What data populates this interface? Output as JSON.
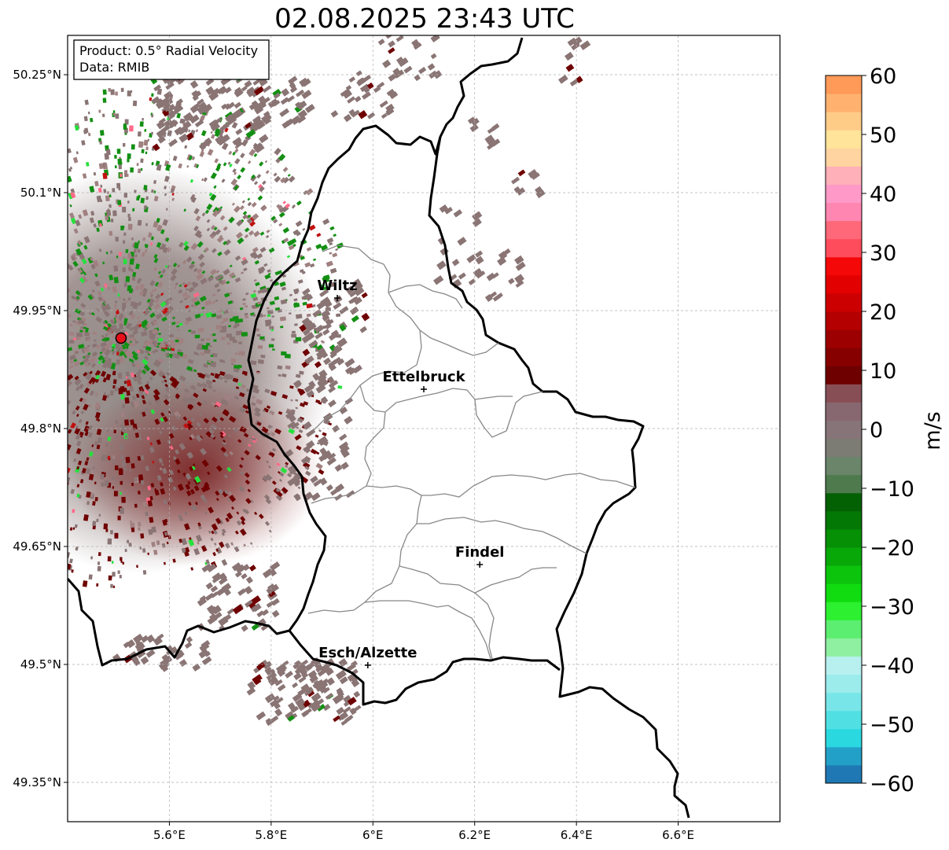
{
  "title": "02.08.2025 23:43 UTC",
  "info": {
    "product": "Product: 0.5° Radial Velocity",
    "source": "Data: RMIB"
  },
  "axes": {
    "lat_labels": [
      "50.25°N",
      "50.1°N",
      "49.95°N",
      "49.8°N",
      "49.65°N",
      "49.5°N",
      "49.35°N"
    ],
    "lat_values": [
      50.25,
      50.1,
      49.95,
      49.8,
      49.65,
      49.5,
      49.35
    ],
    "lon_labels": [
      "5.6°E",
      "5.8°E",
      "6°E",
      "6.2°E",
      "6.4°E",
      "6.6°E"
    ],
    "lon_values": [
      5.6,
      5.8,
      6.0,
      6.2,
      6.4,
      6.6
    ],
    "lon_range": [
      5.4,
      6.8
    ],
    "lat_range": [
      49.3,
      50.3
    ],
    "grid": true
  },
  "cities": [
    {
      "name": "Wiltz",
      "lon": 5.93,
      "lat": 49.966
    },
    {
      "name": "Ettelbruck",
      "lon": 6.1,
      "lat": 49.85
    },
    {
      "name": "Findel",
      "lon": 6.21,
      "lat": 49.627
    },
    {
      "name": "Esch/Alzette",
      "lon": 5.99,
      "lat": 49.499
    }
  ],
  "radar": {
    "lon": 5.505,
    "lat": 49.915,
    "color": "#e8101a"
  },
  "colorbar": {
    "label": "m/s",
    "ticks": [
      "60",
      "50",
      "40",
      "30",
      "20",
      "10",
      "0",
      "−10",
      "−20",
      "−30",
      "−40",
      "−50",
      "−60"
    ],
    "tick_values": [
      60,
      50,
      40,
      30,
      20,
      10,
      0,
      -10,
      -20,
      -30,
      -40,
      -50,
      -60
    ],
    "range": [
      -60,
      60
    ],
    "colors": [
      "#1f78b4",
      "#23a0c8",
      "#2ad8e0",
      "#50e0e4",
      "#78e6e8",
      "#9cecec",
      "#b8f0f0",
      "#8ef0a0",
      "#5cee70",
      "#2cf030",
      "#10dc10",
      "#0cc40c",
      "#08a808",
      "#069006",
      "#047804",
      "#036003",
      "#4e7a4e",
      "#6a856a",
      "#7c7c74",
      "#867478",
      "#886870",
      "#884e56",
      "#6e0000",
      "#860000",
      "#9c0000",
      "#b40000",
      "#cc0000",
      "#e20000",
      "#f40808",
      "#ff4c5c",
      "#ff6878",
      "#ff86b0",
      "#ff9ac8",
      "#ffb0b8",
      "#ffd4a0",
      "#ffe49a",
      "#ffcc88",
      "#ffb270",
      "#ff9a58"
    ]
  },
  "clutter": {
    "main": "#8a7474",
    "green": "#138f13",
    "darkred": "#6f0000",
    "bright_green": "#26e03c",
    "pink": "#ff6a88"
  }
}
